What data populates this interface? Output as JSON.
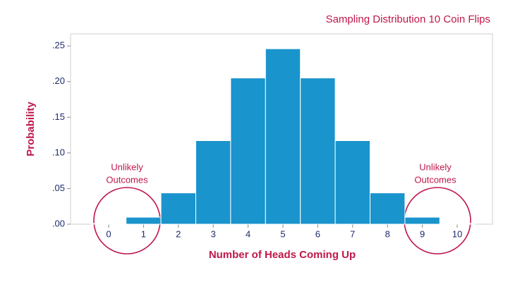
{
  "chart_data": {
    "type": "bar",
    "title": "Sampling Distribution 10 Coin Flips",
    "x_label": "Number of Heads Coming Up",
    "y_label": "Probability",
    "categories": [
      "0",
      "1",
      "2",
      "3",
      "4",
      "5",
      "6",
      "7",
      "8",
      "9",
      "10"
    ],
    "values": [
      0.001,
      0.0098,
      0.0439,
      0.1172,
      0.2051,
      0.2461,
      0.2051,
      0.1172,
      0.0439,
      0.0098,
      0.001
    ],
    "color": "#1a94cc",
    "ylim": [
      0,
      0.267
    ],
    "yticks": [
      {
        "value": 0,
        "label": ".00"
      },
      {
        "value": 0.05,
        "label": ".05"
      },
      {
        "value": 0.1,
        "label": ".10"
      },
      {
        "value": 0.15,
        "label": ".15"
      },
      {
        "value": 0.2,
        "label": ".20"
      },
      {
        "value": 0.25,
        "label": ".25"
      }
    ],
    "annotations": [
      [
        "Unlikely",
        "Outcomes"
      ],
      [
        "Unlikely",
        "Outcomes"
      ]
    ]
  }
}
